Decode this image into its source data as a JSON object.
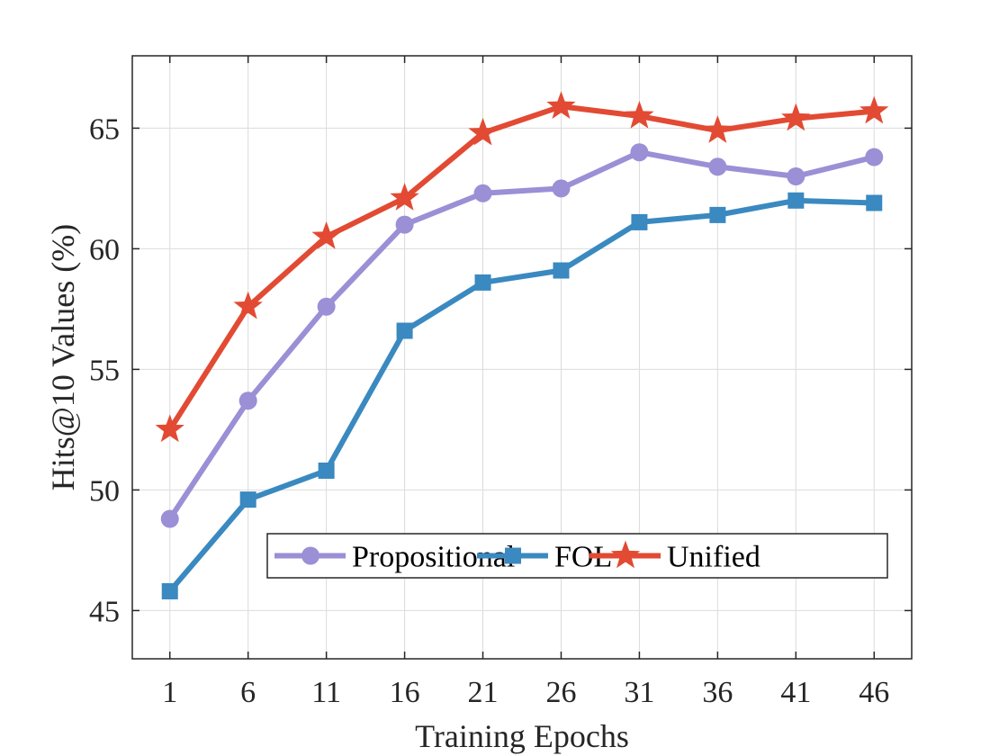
{
  "chart_data": {
    "type": "line",
    "title": "",
    "xlabel": "Training Epochs",
    "ylabel": "Hits@10 Values (%)",
    "x": [
      1,
      6,
      11,
      16,
      21,
      26,
      31,
      36,
      41,
      46
    ],
    "x_tick_labels": [
      "1",
      "6",
      "11",
      "16",
      "21",
      "26",
      "31",
      "36",
      "41",
      "46"
    ],
    "y_ticks": [
      45,
      50,
      55,
      60,
      65
    ],
    "y_tick_labels": [
      "45",
      "50",
      "55",
      "60",
      "65"
    ],
    "xlim": [
      -1.4,
      48.4
    ],
    "ylim": [
      43,
      68
    ],
    "grid": true,
    "legend": {
      "position": "bottom-right",
      "orientation": "horizontal"
    },
    "series": [
      {
        "name": "Propositional",
        "color": "#9B8FD6",
        "marker": "circle",
        "values": [
          48.8,
          53.7,
          57.6,
          61.0,
          62.3,
          62.5,
          64.0,
          63.4,
          63.0,
          63.8
        ]
      },
      {
        "name": "FOL",
        "color": "#3A89C0",
        "marker": "square",
        "values": [
          45.8,
          49.6,
          50.8,
          56.6,
          58.6,
          59.1,
          61.1,
          61.4,
          62.0,
          61.9
        ]
      },
      {
        "name": "Unified",
        "color": "#E24A33",
        "marker": "star",
        "values": [
          52.5,
          57.6,
          60.5,
          62.1,
          64.8,
          65.9,
          65.5,
          64.9,
          65.4,
          65.7
        ]
      }
    ]
  }
}
